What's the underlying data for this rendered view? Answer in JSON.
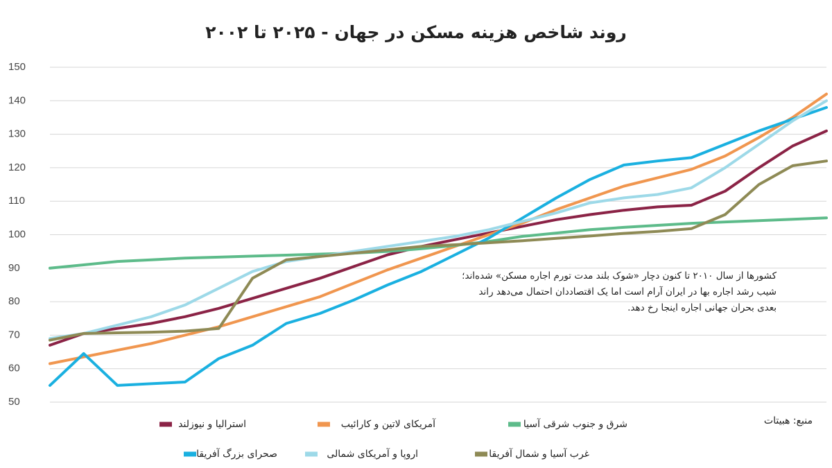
{
  "chart_data": {
    "type": "line",
    "title": "روند شاخص هزینه مسکن در جهان - ۲۰۲۵ تا ۲۰۰۲",
    "annotation": [
      "کشورها از سال ۲۰۱۰ تا کنون دچار «شوک بلند مدت تورم اجاره مسکن» شده‌اند؛",
      "شیب رشد اجاره بها در ایران آرام است  اما یک اقتصاددان احتمال می‌دهد راند",
      "بعدی بحران جهانی اجاره اینجا رخ دهد."
    ],
    "source": "منبع: هبیتات",
    "categories": [
      null,
      null,
      null,
      null,
      null,
      null,
      null,
      null,
      null,
      null,
      null,
      null,
      null,
      null,
      null,
      null,
      null,
      null,
      null,
      null,
      null,
      null,
      null,
      null
    ],
    "ylim": [
      50,
      150
    ],
    "yticks": [
      50,
      60,
      70,
      80,
      90,
      100,
      110,
      120,
      130,
      140,
      150
    ],
    "grid": true,
    "series": [
      {
        "name": "استرالیا و نیوزلند",
        "color": "#8b2346",
        "values": [
          67,
          70.5,
          72,
          73.5,
          75.5,
          78,
          81,
          84,
          87,
          90.5,
          94,
          96.5,
          98.5,
          100.5,
          102.5,
          104.5,
          106,
          107.3,
          108.3,
          108.8,
          113,
          120,
          126.5,
          131
        ]
      },
      {
        "name": "آمریکای لاتین و کارائیب",
        "color": "#f0964f",
        "values": [
          61.5,
          63.5,
          65.5,
          67.5,
          70,
          72.5,
          75.5,
          78.5,
          81.5,
          85.5,
          89.5,
          93,
          96.5,
          100,
          103.5,
          107.5,
          111,
          114.5,
          117,
          119.5,
          123.5,
          129,
          135,
          142
        ]
      },
      {
        "name": "شرق و جنوب شرقی آسیا",
        "color": "#5dbb8a",
        "values": [
          90,
          91,
          92,
          92.5,
          93,
          93.3,
          93.6,
          93.9,
          94.2,
          94.5,
          95,
          95.8,
          96.8,
          98,
          99.5,
          100.5,
          101.5,
          102.2,
          102.8,
          103.4,
          103.8,
          104.2,
          104.6,
          105
        ]
      },
      {
        "name": "صحرای بزرگ آفریقا",
        "color": "#1ab0e0",
        "values": [
          55,
          64.5,
          55,
          55.5,
          56,
          63,
          67,
          73.5,
          76.5,
          80.5,
          85,
          89,
          94,
          99,
          105,
          111,
          116.5,
          120.8,
          122,
          123,
          127,
          131,
          134.5,
          138
        ]
      },
      {
        "name": "اروپا و آمریکای شمالی",
        "color": "#9dd9e8",
        "values": [
          69,
          70.5,
          73,
          75.5,
          79,
          84,
          89,
          92,
          93.5,
          95,
          96.5,
          98,
          99.5,
          101.5,
          104,
          106.5,
          109.5,
          111,
          112,
          114,
          120,
          127,
          134,
          140
        ]
      },
      {
        "name": "غرب آسیا و شمال آفریقا",
        "color": "#8e8a55",
        "values": [
          68.5,
          70.5,
          70.7,
          70.9,
          71.2,
          72,
          87,
          92.5,
          93.5,
          94.5,
          95.5,
          96.5,
          97,
          97.6,
          98.2,
          98.9,
          99.6,
          100.4,
          101,
          101.8,
          106,
          115,
          120.6,
          122
        ]
      }
    ]
  }
}
